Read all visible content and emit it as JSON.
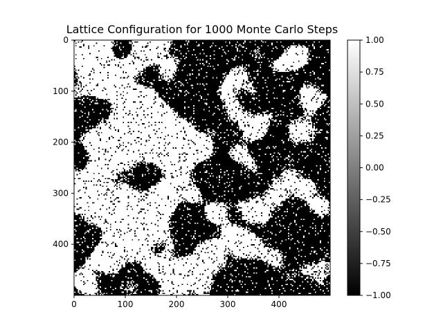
{
  "chart_data": {
    "type": "heatmap",
    "title": "Lattice Configuration for 1000 Monte Carlo Steps",
    "xlabel": "",
    "ylabel": "",
    "grid": false,
    "lattice_size": [
      500,
      500
    ],
    "values_set": [
      -1,
      1
    ],
    "colormap": "gray",
    "x_ticks": [
      0,
      100,
      200,
      300,
      400
    ],
    "y_ticks": [
      0,
      100,
      200,
      300,
      400
    ],
    "x_tick_labels": [
      "0",
      "100",
      "200",
      "300",
      "400"
    ],
    "y_tick_labels": [
      "0",
      "100",
      "200",
      "300",
      "400"
    ],
    "xlim": [
      0,
      500
    ],
    "ylim": [
      500,
      0
    ],
    "colorbar": {
      "range": [
        -1.0,
        1.0
      ],
      "ticks": [
        1.0,
        0.75,
        0.5,
        0.25,
        0.0,
        -0.25,
        -0.5,
        -0.75,
        -1.0
      ],
      "tick_labels": [
        "1.00",
        "0.75",
        "0.50",
        "0.25",
        "0.00",
        "−0.25",
        "−0.50",
        "−0.75",
        "−1.00"
      ],
      "low_color": "#000000",
      "high_color": "#ffffff"
    },
    "white_domains": [
      {
        "x": 30,
        "y": 18,
        "r": 55
      },
      {
        "x": 55,
        "y": 60,
        "r": 60
      },
      {
        "x": 130,
        "y": 25,
        "r": 40
      },
      {
        "x": 170,
        "y": 35,
        "r": 50
      },
      {
        "x": 105,
        "y": 105,
        "r": 55
      },
      {
        "x": 45,
        "y": 230,
        "r": 40
      },
      {
        "x": 80,
        "y": 180,
        "r": 45
      },
      {
        "x": 125,
        "y": 195,
        "r": 55
      },
      {
        "x": 200,
        "y": 250,
        "r": 45
      },
      {
        "x": 200,
        "y": 200,
        "r": 55
      },
      {
        "x": 165,
        "y": 140,
        "r": 45
      },
      {
        "x": 25,
        "y": 310,
        "r": 45
      },
      {
        "x": 95,
        "y": 345,
        "r": 65
      },
      {
        "x": 135,
        "y": 370,
        "r": 55
      },
      {
        "x": 60,
        "y": 420,
        "r": 40
      },
      {
        "x": 170,
        "y": 320,
        "r": 40
      },
      {
        "x": 255,
        "y": 215,
        "r": 22
      },
      {
        "x": 275,
        "y": 335,
        "r": 32
      },
      {
        "x": 310,
        "y": 60,
        "r": 40
      },
      {
        "x": 300,
        "y": 115,
        "r": 25
      },
      {
        "x": 355,
        "y": 160,
        "r": 40
      },
      {
        "x": 330,
        "y": 225,
        "r": 30
      },
      {
        "x": 410,
        "y": 270,
        "r": 45
      },
      {
        "x": 440,
        "y": 170,
        "r": 35
      },
      {
        "x": 460,
        "y": 110,
        "r": 30
      },
      {
        "x": 430,
        "y": 40,
        "r": 35
      },
      {
        "x": 360,
        "y": 330,
        "r": 40
      },
      {
        "x": 330,
        "y": 400,
        "r": 35
      },
      {
        "x": 200,
        "y": 465,
        "r": 45
      },
      {
        "x": 250,
        "y": 450,
        "r": 35
      },
      {
        "x": 260,
        "y": 410,
        "r": 30
      },
      {
        "x": 470,
        "y": 320,
        "r": 30
      },
      {
        "x": 480,
        "y": 450,
        "r": 30
      },
      {
        "x": 20,
        "y": 470,
        "r": 25
      },
      {
        "x": 395,
        "y": 440,
        "r": 30
      },
      {
        "x": 235,
        "y": 310,
        "r": 20
      }
    ],
    "black_domains": [
      {
        "x": 200,
        "y": 120,
        "r": 30
      },
      {
        "x": 255,
        "y": 35,
        "r": 45
      },
      {
        "x": 150,
        "y": 60,
        "r": 28
      },
      {
        "x": 90,
        "y": 20,
        "r": 20
      },
      {
        "x": 380,
        "y": 230,
        "r": 18
      },
      {
        "x": 400,
        "y": 100,
        "r": 35
      },
      {
        "x": 290,
        "y": 270,
        "r": 40
      },
      {
        "x": 440,
        "y": 380,
        "r": 45
      },
      {
        "x": 375,
        "y": 470,
        "r": 35
      },
      {
        "x": 230,
        "y": 360,
        "r": 30
      },
      {
        "x": 20,
        "y": 390,
        "r": 25
      },
      {
        "x": 45,
        "y": 140,
        "r": 25
      },
      {
        "x": 480,
        "y": 230,
        "r": 25
      },
      {
        "x": 140,
        "y": 270,
        "r": 25
      },
      {
        "x": 10,
        "y": 225,
        "r": 18
      },
      {
        "x": 300,
        "y": 470,
        "r": 20
      }
    ]
  }
}
